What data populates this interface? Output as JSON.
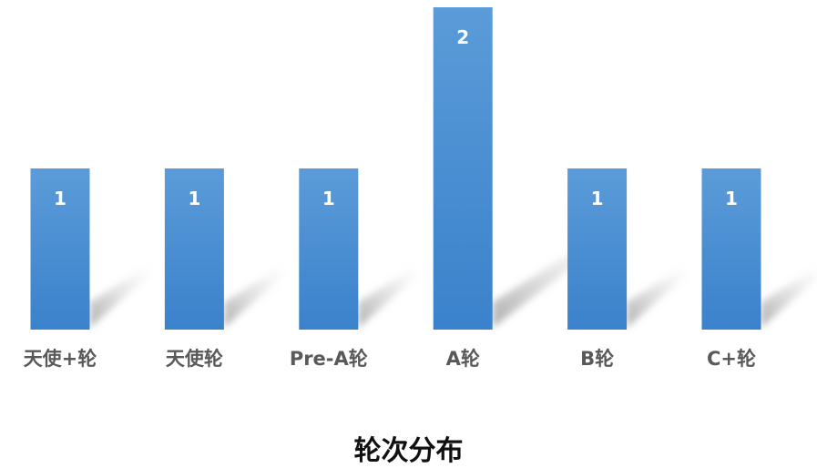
{
  "chart_data": {
    "type": "bar",
    "title": "轮次分布",
    "categories": [
      "天使+轮",
      "天使轮",
      "Pre-A轮",
      "A轮",
      "B轮",
      "C+轮"
    ],
    "values": [
      1,
      1,
      1,
      2,
      1,
      1
    ],
    "ylim": [
      0,
      2
    ],
    "grid": false,
    "legend": "none",
    "bar_color": "#4a8fd4",
    "label_color": "#595959",
    "value_label_color": "#ffffff"
  }
}
